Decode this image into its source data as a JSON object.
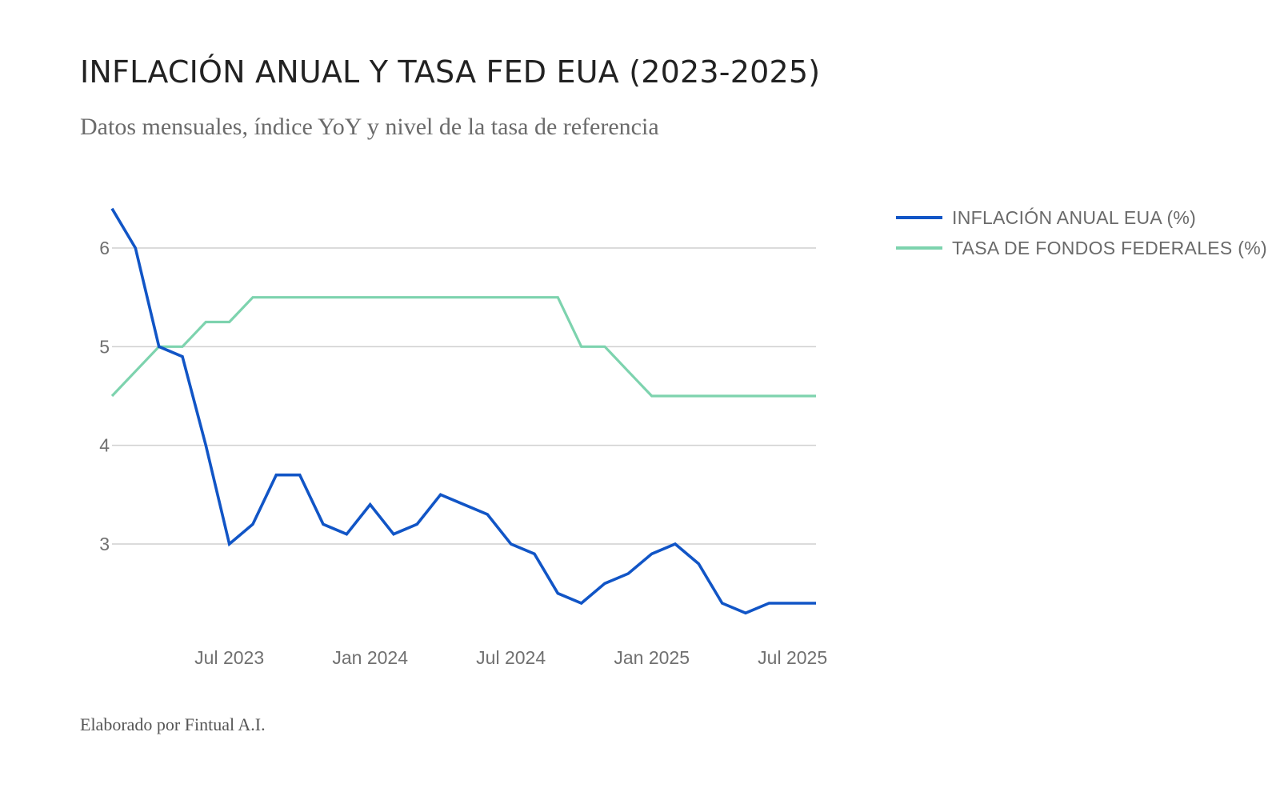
{
  "header": {
    "title": "INFLACIÓN ANUAL Y TASA FED EUA (2023-2025)",
    "subtitle": "Datos mensuales, índice YoY y nivel de la tasa de referencia"
  },
  "footer": {
    "credit": "Elaborado por Fintual A.I."
  },
  "chart_data": {
    "type": "line",
    "title": "INFLACIÓN ANUAL Y TASA FED EUA (2023-2025)",
    "subtitle": "Datos mensuales, índice YoY y nivel de la tasa de referencia",
    "xlabel": "",
    "ylabel": "",
    "x": [
      "2023-02",
      "2023-03",
      "2023-04",
      "2023-05",
      "2023-06",
      "2023-07",
      "2023-08",
      "2023-09",
      "2023-10",
      "2023-11",
      "2023-12",
      "2024-01",
      "2024-02",
      "2024-03",
      "2024-04",
      "2024-05",
      "2024-06",
      "2024-07",
      "2024-08",
      "2024-09",
      "2024-10",
      "2024-11",
      "2024-12",
      "2025-01",
      "2025-02",
      "2025-03",
      "2025-04",
      "2025-05",
      "2025-06",
      "2025-07",
      "2025-08"
    ],
    "x_ticks": [
      {
        "x": "2023-07",
        "label": "Jul 2023"
      },
      {
        "x": "2024-01",
        "label": "Jan 2024"
      },
      {
        "x": "2024-07",
        "label": "Jul 2024"
      },
      {
        "x": "2025-01",
        "label": "Jan 2025"
      },
      {
        "x": "2025-07",
        "label": "Jul 2025"
      }
    ],
    "y_ticks": [
      3,
      4,
      5,
      6
    ],
    "ylim": [
      2.1,
      6.5
    ],
    "grid": true,
    "legend_position": "top-right",
    "series": [
      {
        "name": "INFLACIÓN ANUAL EUA (%)",
        "color": "#1155c6",
        "values": [
          6.4,
          6.0,
          5.0,
          4.9,
          4.0,
          3.0,
          3.2,
          3.7,
          3.7,
          3.2,
          3.1,
          3.4,
          3.1,
          3.2,
          3.5,
          3.4,
          3.3,
          3.0,
          2.9,
          2.5,
          2.4,
          2.6,
          2.7,
          2.9,
          3.0,
          2.8,
          2.4,
          2.3,
          2.4,
          2.4,
          2.4
        ]
      },
      {
        "name": "TASA DE FONDOS FEDERALES (%)",
        "color": "#7dd3ae",
        "values": [
          4.5,
          4.75,
          5.0,
          5.0,
          5.25,
          5.25,
          5.5,
          5.5,
          5.5,
          5.5,
          5.5,
          5.5,
          5.5,
          5.5,
          5.5,
          5.5,
          5.5,
          5.5,
          5.5,
          5.5,
          5.0,
          5.0,
          4.75,
          4.5,
          4.5,
          4.5,
          4.5,
          4.5,
          4.5,
          4.5,
          4.5
        ]
      }
    ]
  }
}
